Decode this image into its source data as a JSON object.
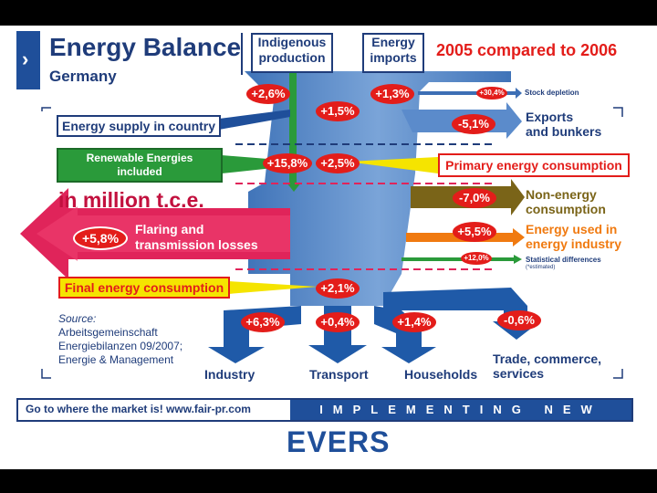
{
  "header": {
    "title": "Energy Balance",
    "subtitle": "Germany",
    "indigenous": [
      "Indigenous",
      "production"
    ],
    "imports": [
      "Energy",
      "imports"
    ],
    "compare": "2005 compared to 2006"
  },
  "labels": {
    "supply": "Energy supply in country",
    "renewables": [
      "Renewable Energies",
      "included"
    ],
    "primary": "Primary energy consumption",
    "unit": "in million t.c.e.",
    "flaring": [
      "Flaring and",
      "transmission losses"
    ],
    "final": "Final energy consumption",
    "stock": "Stock depletion",
    "exports": [
      "Exports",
      "and bunkers"
    ],
    "nonenergy": [
      "Non-energy",
      "consumption"
    ],
    "energyind": [
      "Energy used in",
      "energy industry"
    ],
    "stat": "Statistical differences",
    "stat_note": "(*estimated)",
    "source": [
      "Source:",
      "Arbeitsgemeinschaft",
      "Energiebilanzen 09/2007;",
      "Energie & Management"
    ],
    "industry": "Industry",
    "transport": "Transport",
    "households": "Households",
    "trade": [
      "Trade, commerce,",
      "services"
    ]
  },
  "values": {
    "indigenous": "+2,6%",
    "imports": "+1,3%",
    "stock": "+30,4%",
    "supply": "+1,5%",
    "exports": "-5,1%",
    "renewables": "+15,8%",
    "primary": "+2,5%",
    "nonenergy": "-7,0%",
    "flaring": "+5,8%",
    "energyind": "+5,5%",
    "stat": "+12,0%",
    "final": "+2,1%",
    "industry": "+6,3%",
    "transport": "+0,4%",
    "households": "+1,4%",
    "trade": "-0,6%"
  },
  "footer": {
    "left": "Go to where the market is!  www.fair-pr.com",
    "right": "IMPLEMENTING NEW IDEAS",
    "logo": "EVERS"
  },
  "colors": {
    "flow": "#4a7ec0",
    "dark_blue": "#1f3c7a",
    "red": "#e31d1a",
    "crimson": "#e0245a",
    "green": "#2a9a3a",
    "olive": "#7a6418",
    "orange": "#f07a10",
    "yellow": "#f5e400"
  }
}
